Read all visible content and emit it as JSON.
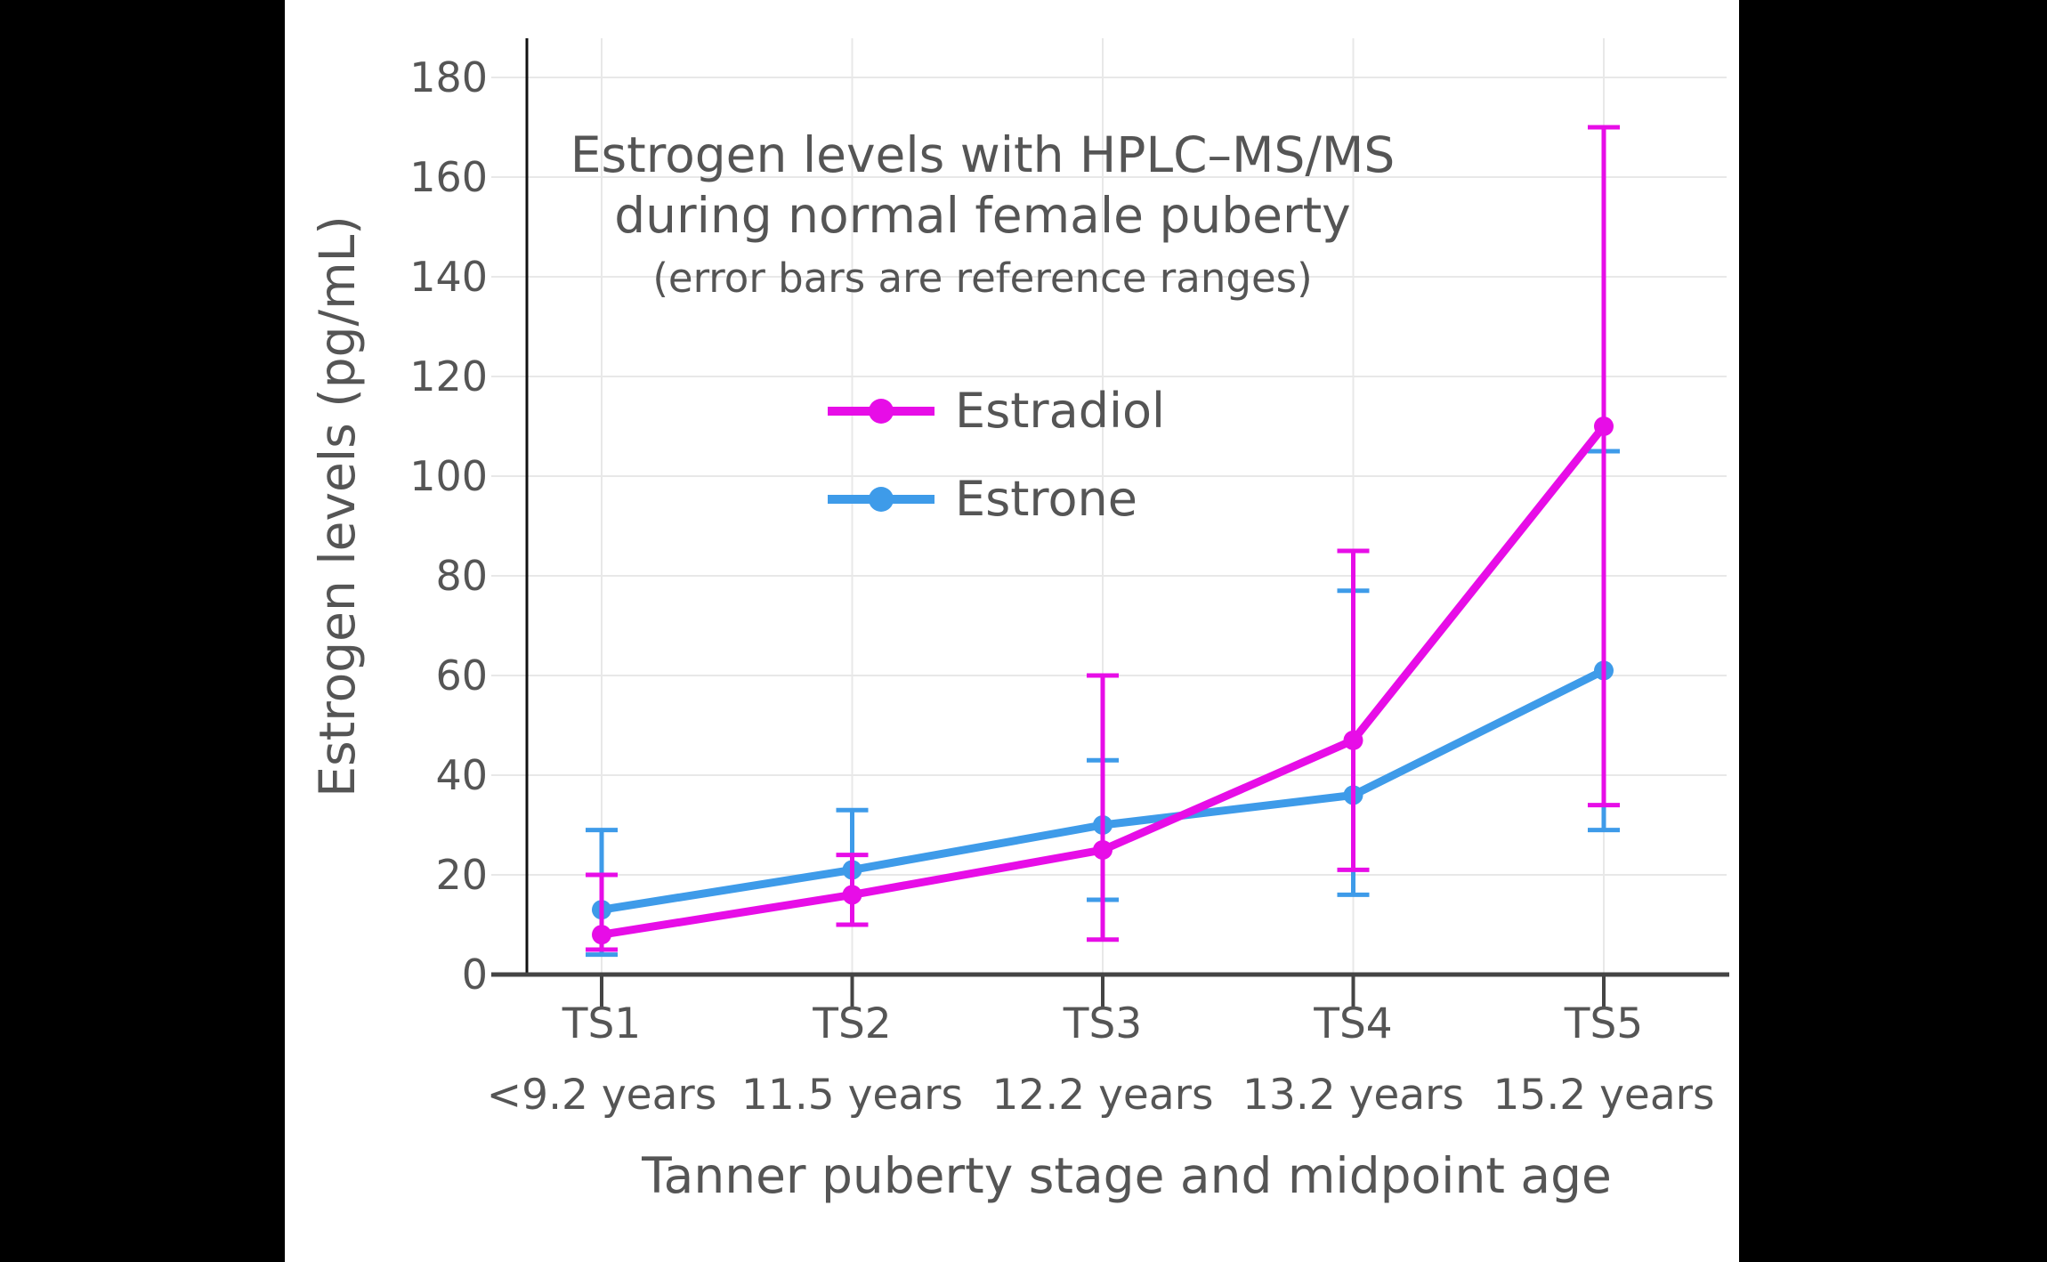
{
  "window": {
    "outer_background": "#000000",
    "figure_background": "#ffffff",
    "text_color": "#555555",
    "grid_color": "#e8e8e8",
    "axis_line_color": "#444444",
    "yaxis_line_color": "#111111"
  },
  "chart_data": {
    "type": "line",
    "title_line1": "Estrogen levels with HPLC–MS/MS",
    "title_line2": "during normal female puberty",
    "subtitle": "(error bars are reference ranges)",
    "xlabel": "Tanner puberty stage and midpoint age",
    "ylabel": "Estrogen levels (pg/mL)",
    "categories": [
      "TS1",
      "TS2",
      "TS3",
      "TS4",
      "TS5"
    ],
    "category_ages": [
      "<9.2 years",
      "11.5 years",
      "12.2 years",
      "13.2 years",
      "15.2 years"
    ],
    "yticks": [
      0,
      20,
      40,
      60,
      80,
      100,
      120,
      140,
      160,
      180
    ],
    "ylim": [
      0,
      188
    ],
    "grid": true,
    "legend_position": "inside-upper-center",
    "error_bar_meaning": "reference ranges",
    "legend": [
      {
        "label": "Estradiol",
        "color": "#e70de7"
      },
      {
        "label": "Estrone",
        "color": "#3e9be9"
      }
    ],
    "series": [
      {
        "name": "Estrone",
        "color": "#3e9be9",
        "values": [
          13,
          21,
          30,
          36,
          61
        ],
        "range_low": [
          4,
          10,
          15,
          16,
          29
        ],
        "range_high": [
          29,
          33,
          43,
          77,
          105
        ]
      },
      {
        "name": "Estradiol",
        "color": "#e70de7",
        "values": [
          8,
          16,
          25,
          47,
          110
        ],
        "range_low": [
          5,
          10,
          7,
          21,
          34
        ],
        "range_high": [
          20,
          24,
          60,
          85,
          170
        ]
      }
    ]
  }
}
